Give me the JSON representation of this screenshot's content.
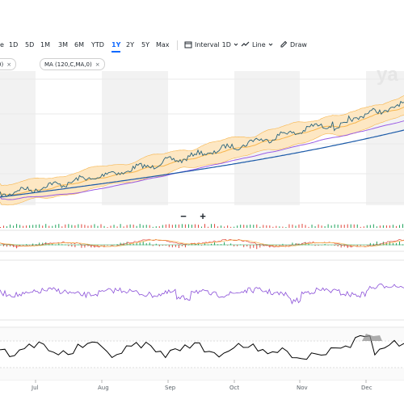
{
  "toolbar": {
    "ranges": [
      "1D",
      "5D",
      "1M",
      "3M",
      "6M",
      "YTD",
      "1Y",
      "2Y",
      "5Y",
      "Max"
    ],
    "active_range": "1Y",
    "interval_label": "Interval",
    "interval_value": "1D",
    "chart_type": "Line",
    "draw_label": "Draw",
    "leading_fragment": "e"
  },
  "chips": {
    "left_fragment": "0)",
    "ma": "MA (120,C,MA,0)",
    "close": "×"
  },
  "watermark": "ya",
  "zoom": {
    "minus": "−",
    "plus": "+"
  },
  "colors": {
    "price": "#26627d",
    "band_fill": "#fde7c3",
    "band_line": "#f7b54c",
    "ma_purple": "#9b5de5",
    "ma_blue": "#1b5aa8",
    "rsi": "#8a4fd8",
    "oscillator": "#000000",
    "accent": "#0f69ff",
    "shade": "#f2f2f2"
  },
  "x_axis": {
    "labels": [
      "Jul",
      "Aug",
      "Sep",
      "Oct",
      "Nov",
      "Dec"
    ]
  }
}
